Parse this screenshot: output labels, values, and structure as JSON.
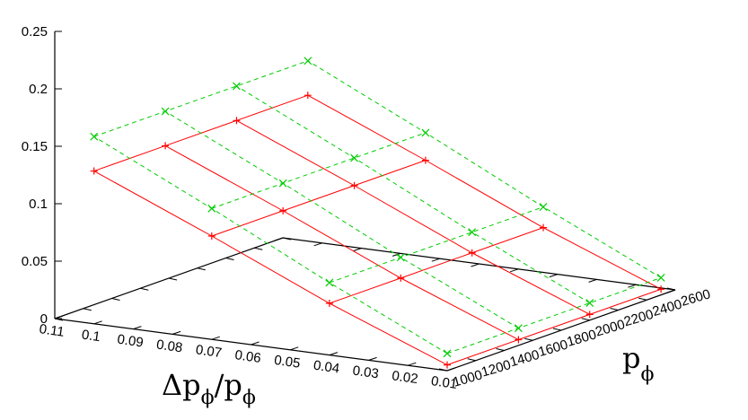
{
  "chart_data": {
    "type": "surface3d",
    "title": "",
    "x_axis": {
      "label_main": "p",
      "label_sub": "ϕ",
      "ticks": [
        "1000",
        "1200",
        "1400",
        "1600",
        "1800",
        "2000",
        "2200",
        "2400",
        "2600"
      ]
    },
    "y_axis": {
      "label_main": "Δp",
      "label_sub": "ϕ",
      "label_mid": "/p",
      "label_sub2": "ϕ",
      "ticks": [
        "0.01",
        "0.02",
        "0.03",
        "0.04",
        "0.05",
        "0.06",
        "0.07",
        "0.08",
        "0.09",
        "0.1",
        "0.11"
      ]
    },
    "z_axis": {
      "ticks": [
        "0",
        "0.05",
        "0.1",
        "0.15",
        "0.2",
        "0.25"
      ],
      "range": [
        0,
        0.25
      ]
    },
    "x_values": [
      1000,
      1500,
      2000,
      2500
    ],
    "y_values": [
      0.01,
      0.04,
      0.07,
      0.1
    ],
    "series": [
      {
        "color": "#ff0000",
        "marker": "+",
        "line_style": "solid",
        "z": [
          [
            0.005,
            0.005,
            0.005,
            0.005
          ],
          [
            0.045,
            0.045,
            0.045,
            0.045
          ],
          [
            0.09,
            0.09,
            0.09,
            0.09
          ],
          [
            0.133,
            0.133,
            0.133,
            0.133
          ]
        ]
      },
      {
        "color": "#00cc00",
        "marker": "x",
        "line_style": "dashed",
        "z": [
          [
            0.015,
            0.015,
            0.015,
            0.015
          ],
          [
            0.063,
            0.063,
            0.063,
            0.063
          ],
          [
            0.114,
            0.114,
            0.114,
            0.114
          ],
          [
            0.163,
            0.163,
            0.163,
            0.163
          ]
        ]
      }
    ]
  }
}
